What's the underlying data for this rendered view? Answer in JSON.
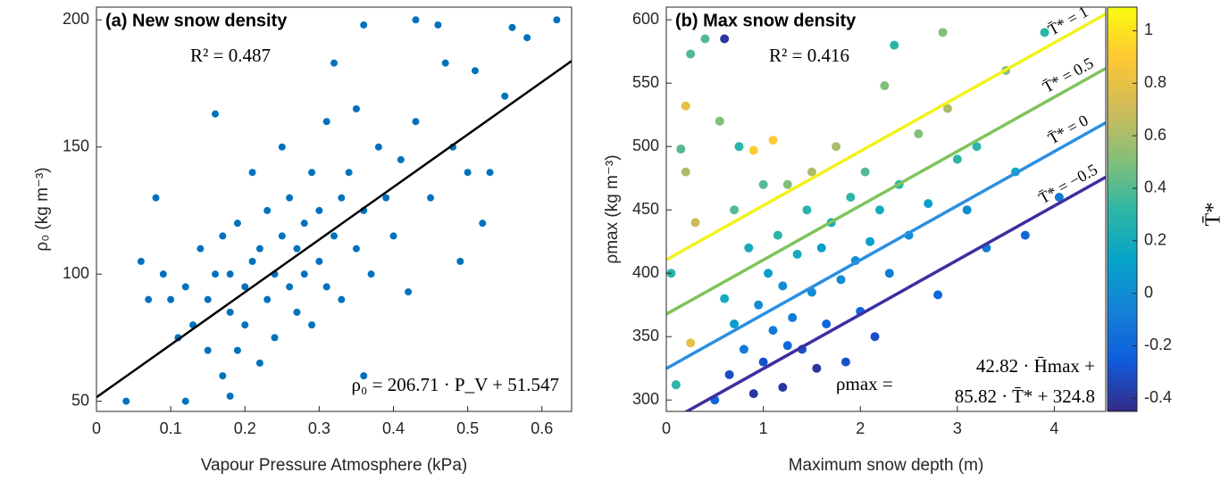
{
  "chart_data": [
    {
      "type": "scatter",
      "title": "(a) New snow density",
      "xlabel": "Vapour Pressure Atmosphere (kPa)",
      "ylabel": "ρ₀ (kg m⁻³)",
      "annotations": [
        "R² = 0.487",
        "ρ₀ = 206.71 · P_V + 51.547"
      ],
      "fit": {
        "slope": 206.71,
        "intercept": 51.547,
        "color": "#000000"
      },
      "color": "#0072bd",
      "xlim": [
        0,
        0.64
      ],
      "ylim": [
        46,
        205
      ],
      "xticks": [
        0,
        0.1,
        0.2,
        0.3,
        0.4,
        0.5,
        0.6
      ],
      "yticks": [
        50,
        100,
        150,
        200
      ],
      "x": [
        0.04,
        0.06,
        0.07,
        0.08,
        0.09,
        0.1,
        0.11,
        0.12,
        0.12,
        0.13,
        0.14,
        0.15,
        0.15,
        0.16,
        0.16,
        0.17,
        0.17,
        0.18,
        0.18,
        0.19,
        0.19,
        0.2,
        0.2,
        0.21,
        0.21,
        0.22,
        0.22,
        0.23,
        0.23,
        0.24,
        0.24,
        0.25,
        0.25,
        0.26,
        0.26,
        0.27,
        0.27,
        0.28,
        0.28,
        0.29,
        0.29,
        0.3,
        0.3,
        0.31,
        0.31,
        0.32,
        0.32,
        0.33,
        0.33,
        0.34,
        0.35,
        0.35,
        0.36,
        0.36,
        0.37,
        0.38,
        0.39,
        0.4,
        0.41,
        0.42,
        0.43,
        0.43,
        0.45,
        0.46,
        0.47,
        0.48,
        0.49,
        0.5,
        0.51,
        0.52,
        0.53,
        0.55,
        0.56,
        0.58,
        0.62,
        0.36,
        0.18
      ],
      "values": [
        50,
        105,
        90,
        130,
        100,
        90,
        75,
        50,
        95,
        80,
        110,
        70,
        90,
        163,
        100,
        60,
        115,
        85,
        100,
        70,
        120,
        95,
        80,
        105,
        140,
        65,
        110,
        90,
        125,
        100,
        75,
        115,
        150,
        95,
        130,
        85,
        110,
        120,
        100,
        140,
        80,
        105,
        125,
        160,
        95,
        115,
        183,
        130,
        90,
        140,
        110,
        165,
        198,
        125,
        100,
        150,
        130,
        115,
        145,
        93,
        200,
        160,
        130,
        198,
        183,
        150,
        105,
        140,
        180,
        120,
        140,
        170,
        197,
        193,
        200,
        60,
        52
      ]
    },
    {
      "type": "scatter",
      "title": "(b) Max snow density",
      "xlabel": "Maximum snow depth (m)",
      "ylabel": "ρmax (kg m⁻³)",
      "annotations": [
        "R² = 0.416",
        "ρmax =",
        "42.82 · H̄max +",
        "85.82 · T̄* + 324.8"
      ],
      "model": {
        "h_coef": 42.82,
        "t_coef": 85.82,
        "intercept": 324.8
      },
      "lines": [
        {
          "t": 1,
          "label": "T̄* = 1",
          "color": "#f2f21c"
        },
        {
          "t": 0.5,
          "label": "T̄* = 0.5",
          "color": "#7fc45c"
        },
        {
          "t": 0,
          "label": "T̄* = 0",
          "color": "#2b8fe0"
        },
        {
          "t": -0.5,
          "label": "T̄* = −0.5",
          "color": "#3c2fa0"
        }
      ],
      "xlim": [
        0,
        4.53
      ],
      "ylim": [
        291,
        610
      ],
      "xticks": [
        0,
        1,
        2,
        3,
        4
      ],
      "yticks": [
        300,
        350,
        400,
        450,
        500,
        550,
        600
      ],
      "colorbar": {
        "label": "T̄*",
        "ylim": [
          -0.45,
          1.09
        ],
        "yticks": [
          -0.4,
          -0.2,
          0,
          0.2,
          0.4,
          0.6,
          0.8,
          1
        ],
        "colormap": [
          "#352a87",
          "#0f5cdd",
          "#1481d6",
          "#06a4ca",
          "#2eb7a4",
          "#87bf77",
          "#d1bb59",
          "#fec832",
          "#f9fb0e"
        ]
      },
      "x": [
        0.1,
        0.15,
        0.2,
        0.25,
        0.2,
        0.25,
        0.3,
        0.4,
        0.5,
        0.55,
        0.6,
        0.6,
        0.65,
        0.7,
        0.7,
        0.75,
        0.8,
        0.85,
        0.9,
        0.9,
        0.95,
        1.0,
        1.0,
        1.05,
        1.1,
        1.1,
        1.15,
        1.2,
        1.2,
        1.25,
        1.3,
        1.35,
        1.4,
        1.45,
        1.5,
        1.5,
        1.55,
        1.6,
        1.65,
        1.7,
        1.75,
        1.8,
        1.85,
        1.9,
        1.95,
        2.0,
        2.05,
        2.1,
        2.15,
        2.2,
        2.25,
        2.3,
        2.35,
        2.4,
        2.5,
        2.6,
        2.7,
        2.8,
        2.85,
        2.9,
        3.0,
        3.1,
        3.2,
        3.3,
        3.5,
        3.6,
        3.7,
        3.9,
        4.05,
        1.25,
        0.05
      ],
      "values": [
        312,
        498,
        532,
        573,
        480,
        345,
        440,
        585,
        300,
        520,
        585,
        380,
        320,
        450,
        360,
        500,
        340,
        420,
        305,
        497,
        375,
        470,
        330,
        400,
        355,
        505,
        430,
        390,
        310,
        470,
        365,
        415,
        340,
        450,
        385,
        480,
        325,
        420,
        360,
        440,
        500,
        395,
        330,
        460,
        410,
        370,
        480,
        425,
        350,
        450,
        548,
        400,
        580,
        470,
        430,
        510,
        455,
        383,
        590,
        530,
        490,
        450,
        500,
        420,
        560,
        480,
        430,
        590,
        460,
        343,
        400
      ],
      "c": [
        0.3,
        0.4,
        0.8,
        0.4,
        0.6,
        0.8,
        0.7,
        0.4,
        -0.2,
        0.5,
        -0.4,
        0.2,
        -0.3,
        0.4,
        0.1,
        0.3,
        -0.1,
        0.2,
        -0.4,
        0.9,
        0,
        0.4,
        -0.3,
        0.1,
        -0.1,
        0.9,
        0.3,
        0,
        -0.4,
        0.5,
        -0.1,
        0.2,
        -0.3,
        0.3,
        0,
        0.6,
        -0.4,
        0.1,
        -0.2,
        0.2,
        0.6,
        0,
        -0.3,
        0.3,
        0,
        -0.2,
        0.4,
        0.1,
        -0.3,
        0.2,
        0.5,
        -0.1,
        0.3,
        0.3,
        0,
        0.5,
        0.1,
        -0.2,
        0.5,
        0.6,
        0.3,
        0,
        0.3,
        -0.1,
        0.5,
        0.2,
        -0.2,
        0.3,
        -0.1,
        -0.2,
        0.3
      ]
    }
  ]
}
